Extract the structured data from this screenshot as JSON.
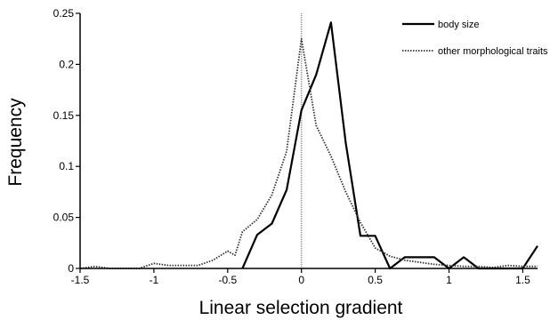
{
  "chart_data": {
    "type": "line",
    "title": "",
    "xlabel": "Linear selection gradient",
    "ylabel": "Frequency",
    "xlim": [
      -1.5,
      1.6
    ],
    "ylim": [
      0,
      0.25
    ],
    "x_ticks": [
      "-1.5",
      "-1",
      "-0.5",
      "0",
      "0.5",
      "1",
      "1.5"
    ],
    "x_tick_values": [
      -1.5,
      -1,
      -0.5,
      0,
      0.5,
      1,
      1.5
    ],
    "y_ticks": [
      "0",
      "0.05",
      "0.1",
      "0.15",
      "0.2",
      "0.25"
    ],
    "y_tick_values": [
      0,
      0.05,
      0.1,
      0.15,
      0.2,
      0.25
    ],
    "reference_line_x": 0,
    "grid": false,
    "legend_position": "top-right",
    "series": [
      {
        "name": "body size",
        "style": "solid",
        "color": "#000000",
        "x": [
          -0.4,
          -0.3,
          -0.2,
          -0.1,
          0.0,
          0.1,
          0.2,
          0.3,
          0.4,
          0.5,
          0.6,
          0.7,
          0.8,
          0.9,
          1.0,
          1.1,
          1.2,
          1.3,
          1.4,
          1.5,
          1.6
        ],
        "y": [
          0.0,
          0.033,
          0.044,
          0.077,
          0.155,
          0.19,
          0.241,
          0.123,
          0.032,
          0.032,
          0.0,
          0.011,
          0.011,
          0.011,
          0.0,
          0.011,
          0.0,
          0.0,
          0.0,
          0.0,
          0.022
        ]
      },
      {
        "name": "other morphological traits",
        "style": "dotted",
        "color": "#333333",
        "x": [
          -1.5,
          -1.4,
          -1.3,
          -1.2,
          -1.1,
          -1.0,
          -0.9,
          -0.8,
          -0.7,
          -0.6,
          -0.5,
          -0.45,
          -0.4,
          -0.3,
          -0.2,
          -0.1,
          0.0,
          0.1,
          0.2,
          0.3,
          0.4,
          0.5,
          0.6,
          0.7,
          0.8,
          0.9,
          1.0,
          1.1,
          1.2,
          1.3,
          1.4,
          1.5,
          1.6
        ],
        "y": [
          0.0,
          0.002,
          0.0,
          0.0,
          0.0,
          0.005,
          0.003,
          0.003,
          0.003,
          0.008,
          0.017,
          0.013,
          0.036,
          0.048,
          0.072,
          0.115,
          0.225,
          0.14,
          0.11,
          0.075,
          0.045,
          0.02,
          0.012,
          0.008,
          0.006,
          0.004,
          0.003,
          0.002,
          0.002,
          0.001,
          0.003,
          0.002,
          0.002
        ]
      }
    ]
  }
}
